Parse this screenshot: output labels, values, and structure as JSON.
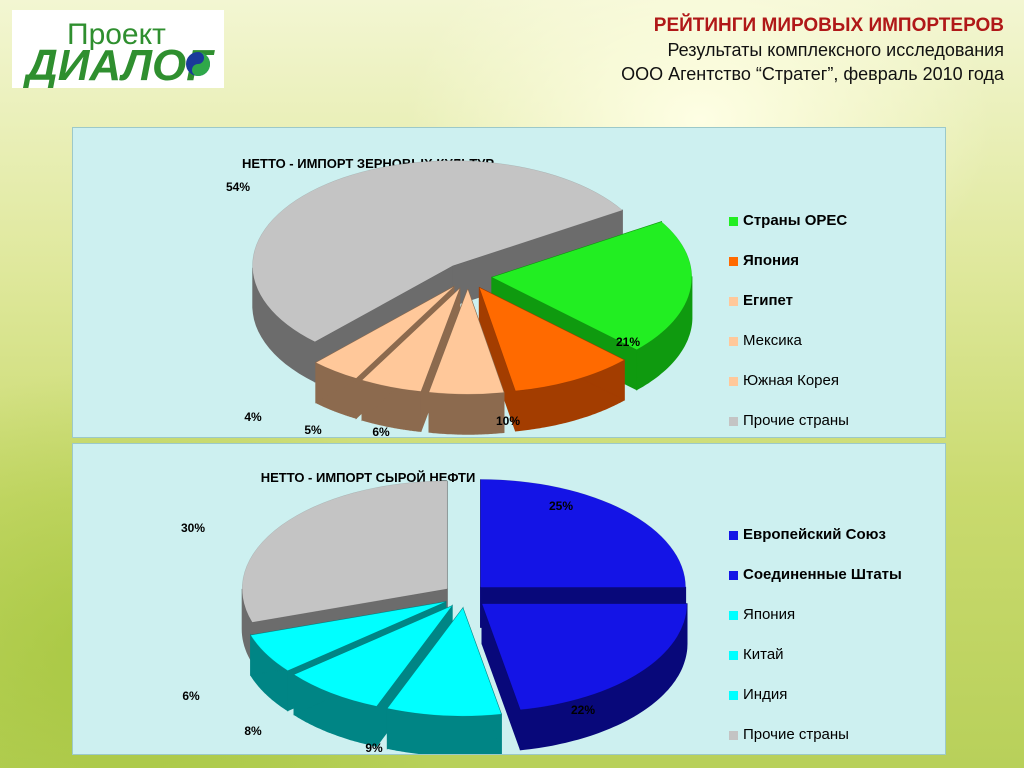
{
  "logo": {
    "word1": "Проект",
    "word2": "ДИАЛОГ"
  },
  "header": {
    "title": "РЕЙТИНГИ МИРОВЫХ ИМПОРТЕРОВ",
    "subtitle1": "Результаты комплексного исследования",
    "subtitle2": "ООО Агентство “Стратег”, февраль 2010 года"
  },
  "chart_data": [
    {
      "type": "pie",
      "title": "НЕТТО - ИМПОРТ ЗЕРНОВЫХ КУЛЬТУР",
      "legend_position": "right",
      "slices": [
        {
          "label": "Страны OPEC",
          "value": 21,
          "display": "21%",
          "color": "#22ee22",
          "side": "#0f9a0f",
          "bold": true
        },
        {
          "label": "Япония",
          "value": 10,
          "display": "10%",
          "color": "#ff6a00",
          "side": "#a33d00",
          "bold": true
        },
        {
          "label": "Египет",
          "value": 6,
          "display": "6%",
          "color": "#ffc89a",
          "side": "#8c6a4e",
          "bold": true
        },
        {
          "label": "Мексика",
          "value": 5,
          "display": "5%",
          "color": "#ffc89a",
          "side": "#8c6a4e",
          "bold": false
        },
        {
          "label": "Южная Корея",
          "value": 4,
          "display": "4%",
          "color": "#ffc89a",
          "side": "#8c6a4e",
          "bold": false
        },
        {
          "label": "Прочие страны",
          "value": 54,
          "display": "54%",
          "color": "#c4c4c4",
          "side": "#6c6c6c",
          "bold": false
        }
      ]
    },
    {
      "type": "pie",
      "title": "НЕТТО - ИМПОРТ СЫРОЙ НЕФТИ",
      "legend_position": "right",
      "slices": [
        {
          "label": "Европейский Союз",
          "value": 25,
          "display": "25%",
          "color": "#1414e6",
          "side": "#08087a",
          "bold": true
        },
        {
          "label": "Соединенные Штаты",
          "value": 22,
          "display": "22%",
          "color": "#1414e6",
          "side": "#08087a",
          "bold": true
        },
        {
          "label": "Япония",
          "value": 9,
          "display": "9%",
          "color": "#00ffff",
          "side": "#008585",
          "bold": false
        },
        {
          "label": "Китай",
          "value": 8,
          "display": "8%",
          "color": "#00ffff",
          "side": "#008585",
          "bold": false
        },
        {
          "label": "Индия",
          "value": 6,
          "display": "6%",
          "color": "#00ffff",
          "side": "#008585",
          "bold": false
        },
        {
          "label": "Прочие страны",
          "value": 30,
          "display": "30%",
          "color": "#c4c4c4",
          "side": "#6c6c6c",
          "bold": false
        }
      ]
    }
  ]
}
